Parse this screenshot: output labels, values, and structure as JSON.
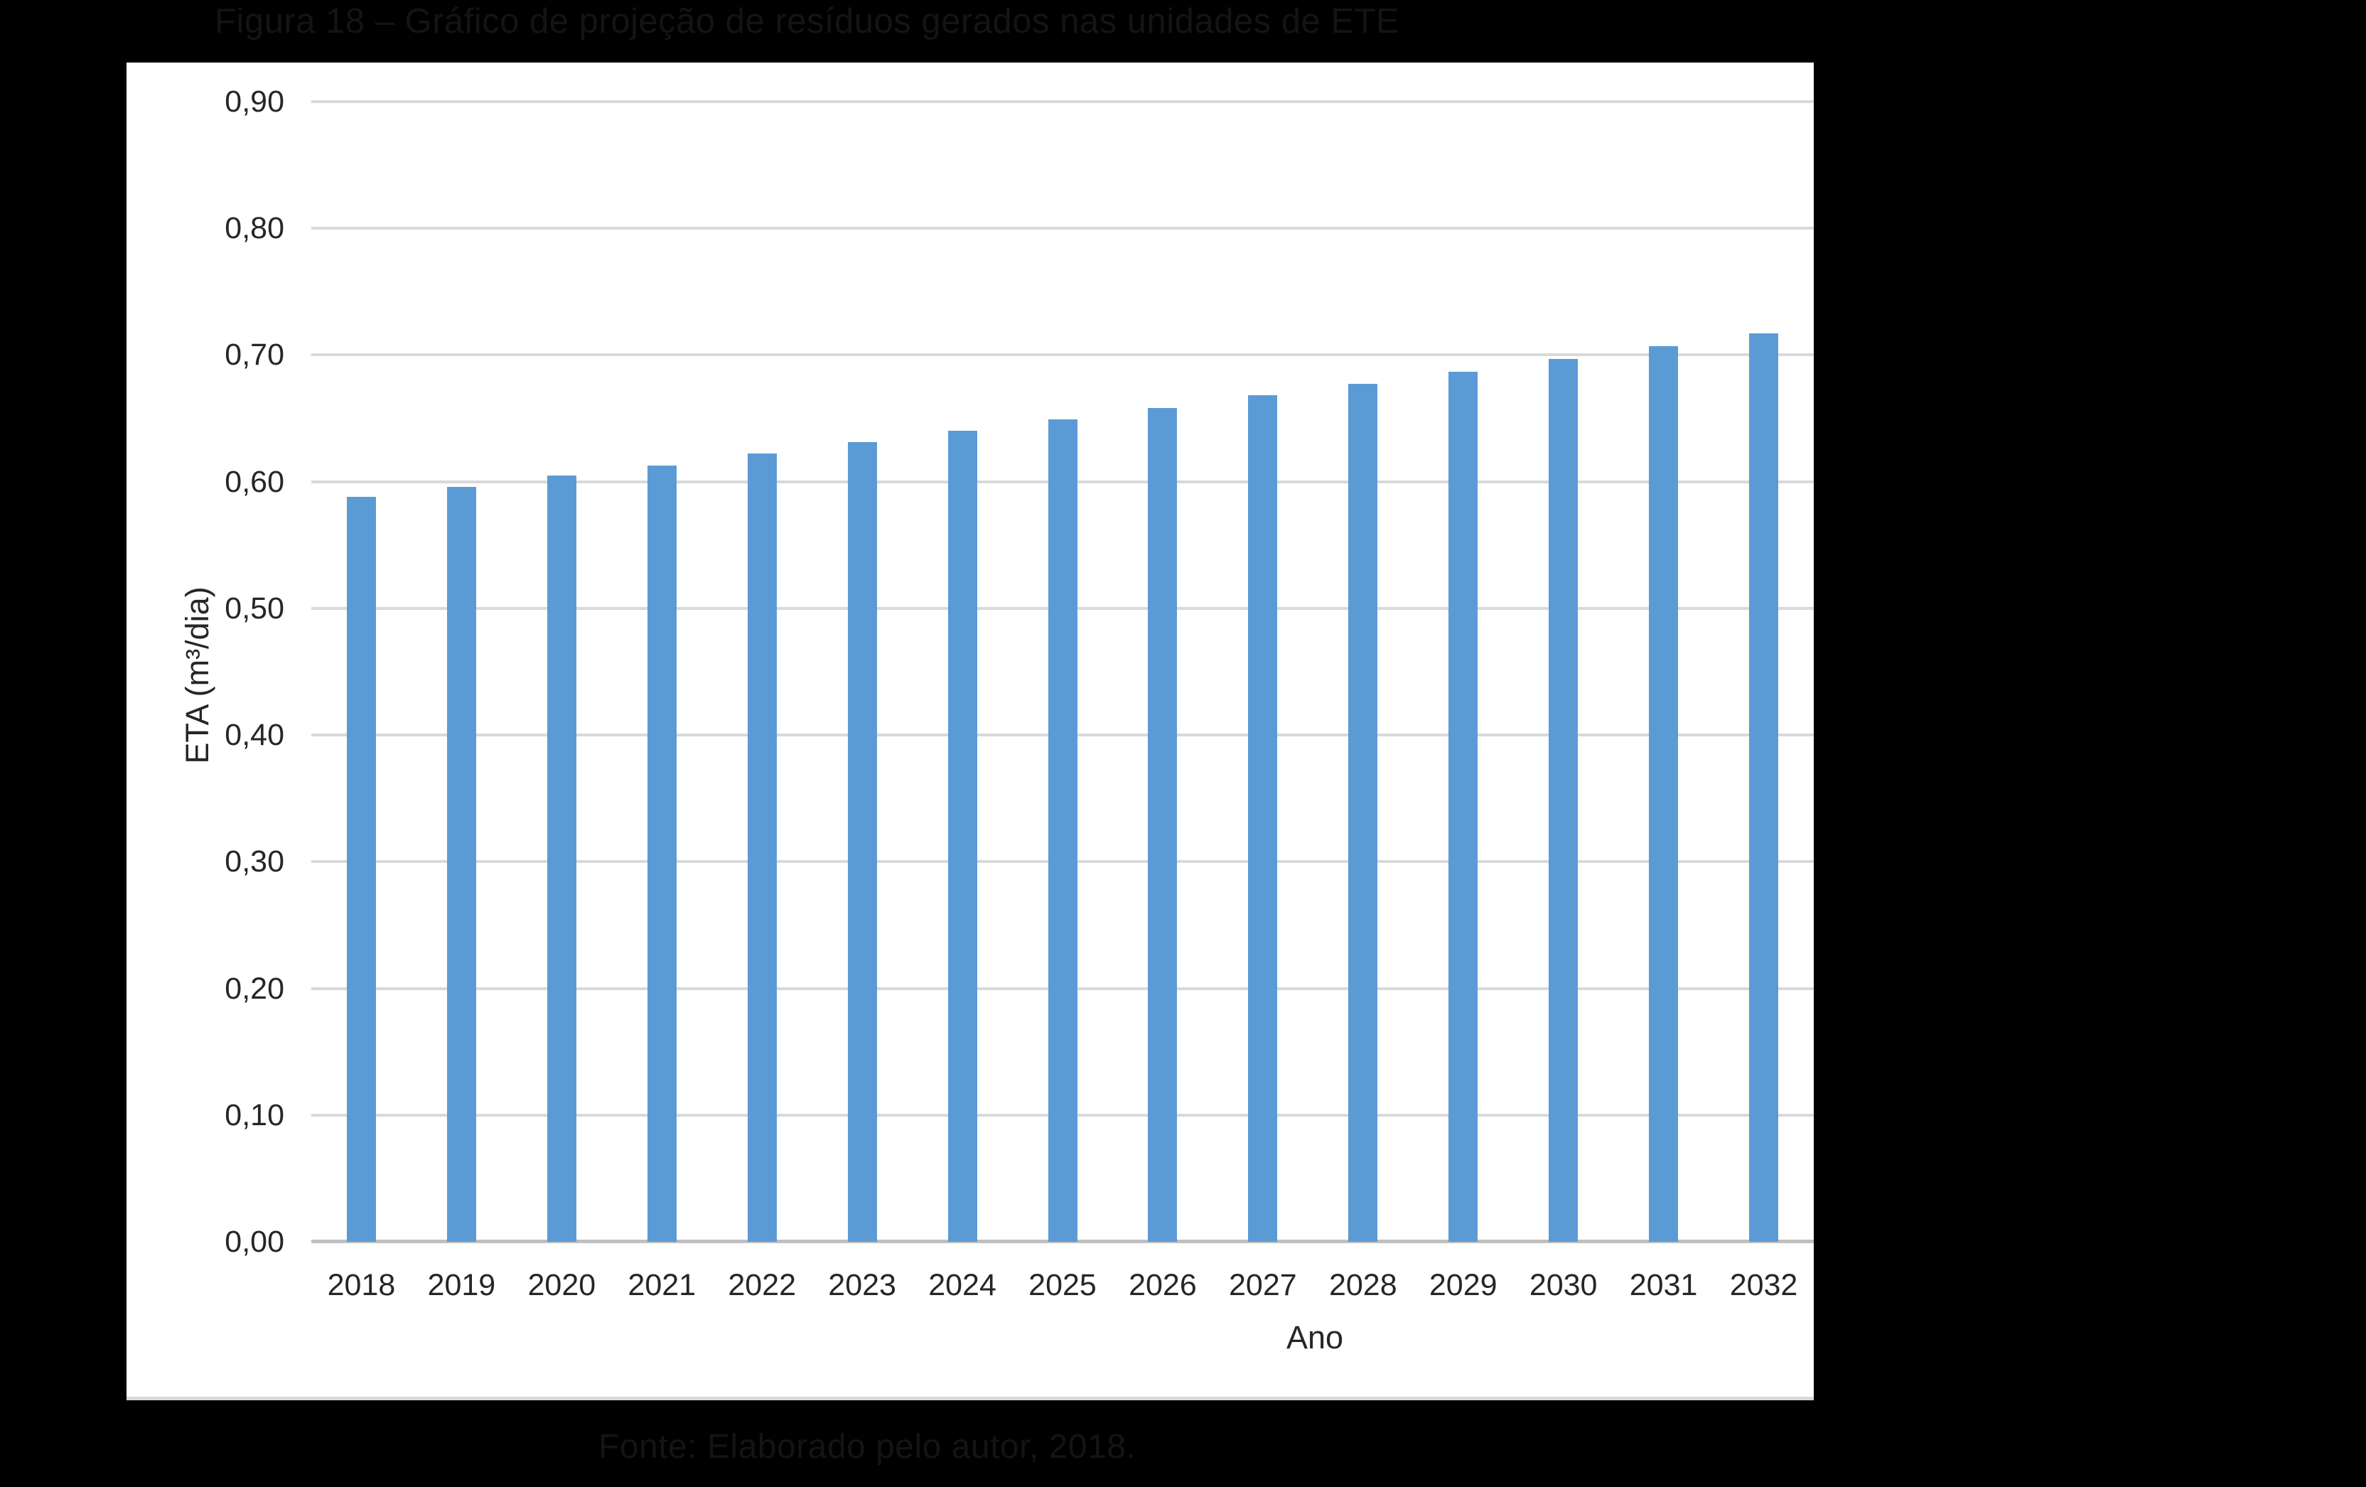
{
  "figure": {
    "title": "Figura 18 – Gráfico de projeção de resíduos gerados nas unidades de ETE",
    "caption": "Fonte: Elaborado pelo autor, 2018."
  },
  "chart_data": {
    "type": "bar",
    "title": "",
    "xlabel": "Ano",
    "ylabel": "ETA (m³/dia)",
    "categories": [
      "2018",
      "2019",
      "2020",
      "2021",
      "2022",
      "2023",
      "2024",
      "2025",
      "2026",
      "2027",
      "2028",
      "2029",
      "2030",
      "2031",
      "2032"
    ],
    "values": [
      0.588,
      0.596,
      0.605,
      0.613,
      0.622,
      0.631,
      0.64,
      0.649,
      0.658,
      0.668,
      0.677,
      0.687,
      0.697,
      0.707,
      0.717
    ],
    "ylim": [
      0,
      0.9
    ],
    "ytick_step": 0.1,
    "ytick_labels": [
      "0,00",
      "0,10",
      "0,20",
      "0,30",
      "0,40",
      "0,50",
      "0,60",
      "0,70",
      "0,80",
      "0,90"
    ],
    "grid": true,
    "legend": false,
    "colors": {
      "bar": "#5B9BD5",
      "gridline": "#D9D9D9",
      "axis_line": "#BFBFBF",
      "panel_bg": "#FFFFFF",
      "page_bg": "#000000",
      "tick_text": "#262626",
      "faint_text": "#141414"
    }
  }
}
